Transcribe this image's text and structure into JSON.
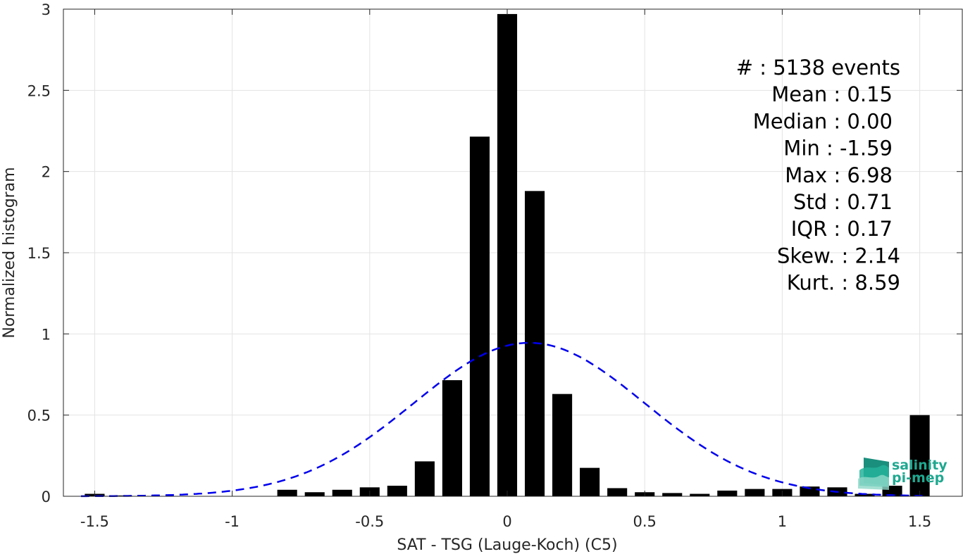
{
  "chart_data": {
    "type": "bar",
    "xlabel": "SAT - TSG (Lauge-Koch) (C5)",
    "ylabel": "Normalized histogram",
    "xlim": [
      -1.6,
      1.6
    ],
    "ylim": [
      0,
      3
    ],
    "x_ticks": [
      -1.5,
      -1,
      -0.5,
      0,
      0.5,
      1,
      1.5
    ],
    "x_tick_labels": [
      "-1.5",
      "-1",
      "-0.5",
      "0",
      "0.5",
      "1",
      "1.5"
    ],
    "y_ticks": [
      0,
      0.5,
      1,
      1.5,
      2,
      2.5,
      3
    ],
    "y_tick_labels": [
      "0",
      "0.5",
      "1",
      "1.5",
      "2",
      "2.5",
      "3"
    ],
    "grid": true,
    "bar_color": "#000000",
    "bin_width": 0.1,
    "bars": {
      "x": [
        -1.5,
        -1.4,
        -1.3,
        -1.2,
        -1.1,
        -1.0,
        -0.9,
        -0.8,
        -0.7,
        -0.6,
        -0.5,
        -0.4,
        -0.3,
        -0.2,
        -0.1,
        0.0,
        0.1,
        0.2,
        0.3,
        0.4,
        0.5,
        0.6,
        0.7,
        0.8,
        0.9,
        1.0,
        1.1,
        1.2,
        1.3,
        1.4,
        1.5
      ],
      "values": [
        0.015,
        0.005,
        0.0,
        0.0,
        0.0,
        0.0,
        0.0,
        0.04,
        0.025,
        0.04,
        0.055,
        0.065,
        0.215,
        0.715,
        2.215,
        2.97,
        1.88,
        0.63,
        0.175,
        0.05,
        0.025,
        0.02,
        0.015,
        0.035,
        0.045,
        0.045,
        0.06,
        0.055,
        0.015,
        0.065,
        0.5
      ]
    },
    "fit": {
      "type": "normal",
      "mean": 0.08,
      "peak": 0.945,
      "sigma": 0.42,
      "color": "#0000ee",
      "style": "dashed"
    }
  },
  "stats": [
    {
      "label": "#  : 5138 events"
    },
    {
      "label": "Mean : 0.15"
    },
    {
      "label": "Median : 0.00"
    },
    {
      "label": "Min : -1.59"
    },
    {
      "label": "Max : 6.98"
    },
    {
      "label": "Std : 0.71"
    },
    {
      "label": "IQR : 0.17"
    },
    {
      "label": "Skew. : 2.14"
    },
    {
      "label": "Kurt. : 8.59"
    }
  ],
  "logo": {
    "line1": "salinity",
    "line2": "pi-mep",
    "color": "#1fa890"
  }
}
